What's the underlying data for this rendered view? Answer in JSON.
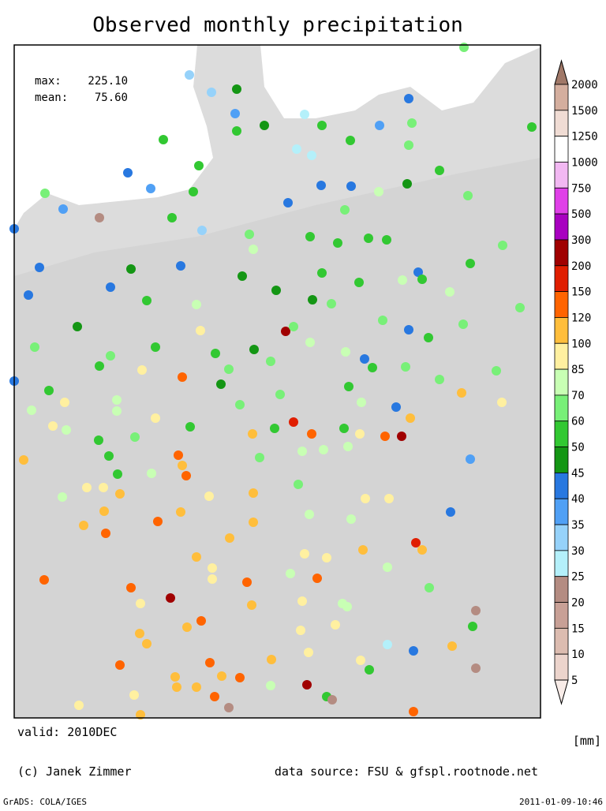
{
  "title": "Observed monthly precipitation",
  "stats": {
    "max_label": "max:",
    "max": "225.10",
    "mean_label": "mean:",
    "mean": "75.60"
  },
  "valid": "valid: 2010DEC",
  "unit": "[mm]",
  "copyright": "(c) Janek Zimmer",
  "source": "data source: FSU & gfspl.rootnode.net",
  "software": "GrADS: COLA/IGES",
  "timestamp": "2011-01-09-10:46",
  "colorbar": {
    "labels": [
      2000,
      1500,
      1250,
      1000,
      750,
      500,
      300,
      200,
      150,
      120,
      100,
      85,
      70,
      60,
      50,
      45,
      40,
      35,
      30,
      25,
      20,
      15,
      10,
      5
    ],
    "colors": [
      "#a07868",
      "#d4ae9e",
      "#f0dcd4",
      "#ffffff",
      "#f2b8f2",
      "#e040e8",
      "#a800c0",
      "#a00000",
      "#e01e00",
      "#ff6400",
      "#ffbe3c",
      "#fff0a0",
      "#c8ffb4",
      "#78f078",
      "#32c832",
      "#149614",
      "#2878e0",
      "#50a0f5",
      "#96d2fa",
      "#b4f0fa",
      "#b48c82",
      "#c8a096",
      "#dcbcb0",
      "#ecd4cc",
      "#f8ece8"
    ]
  }
}
